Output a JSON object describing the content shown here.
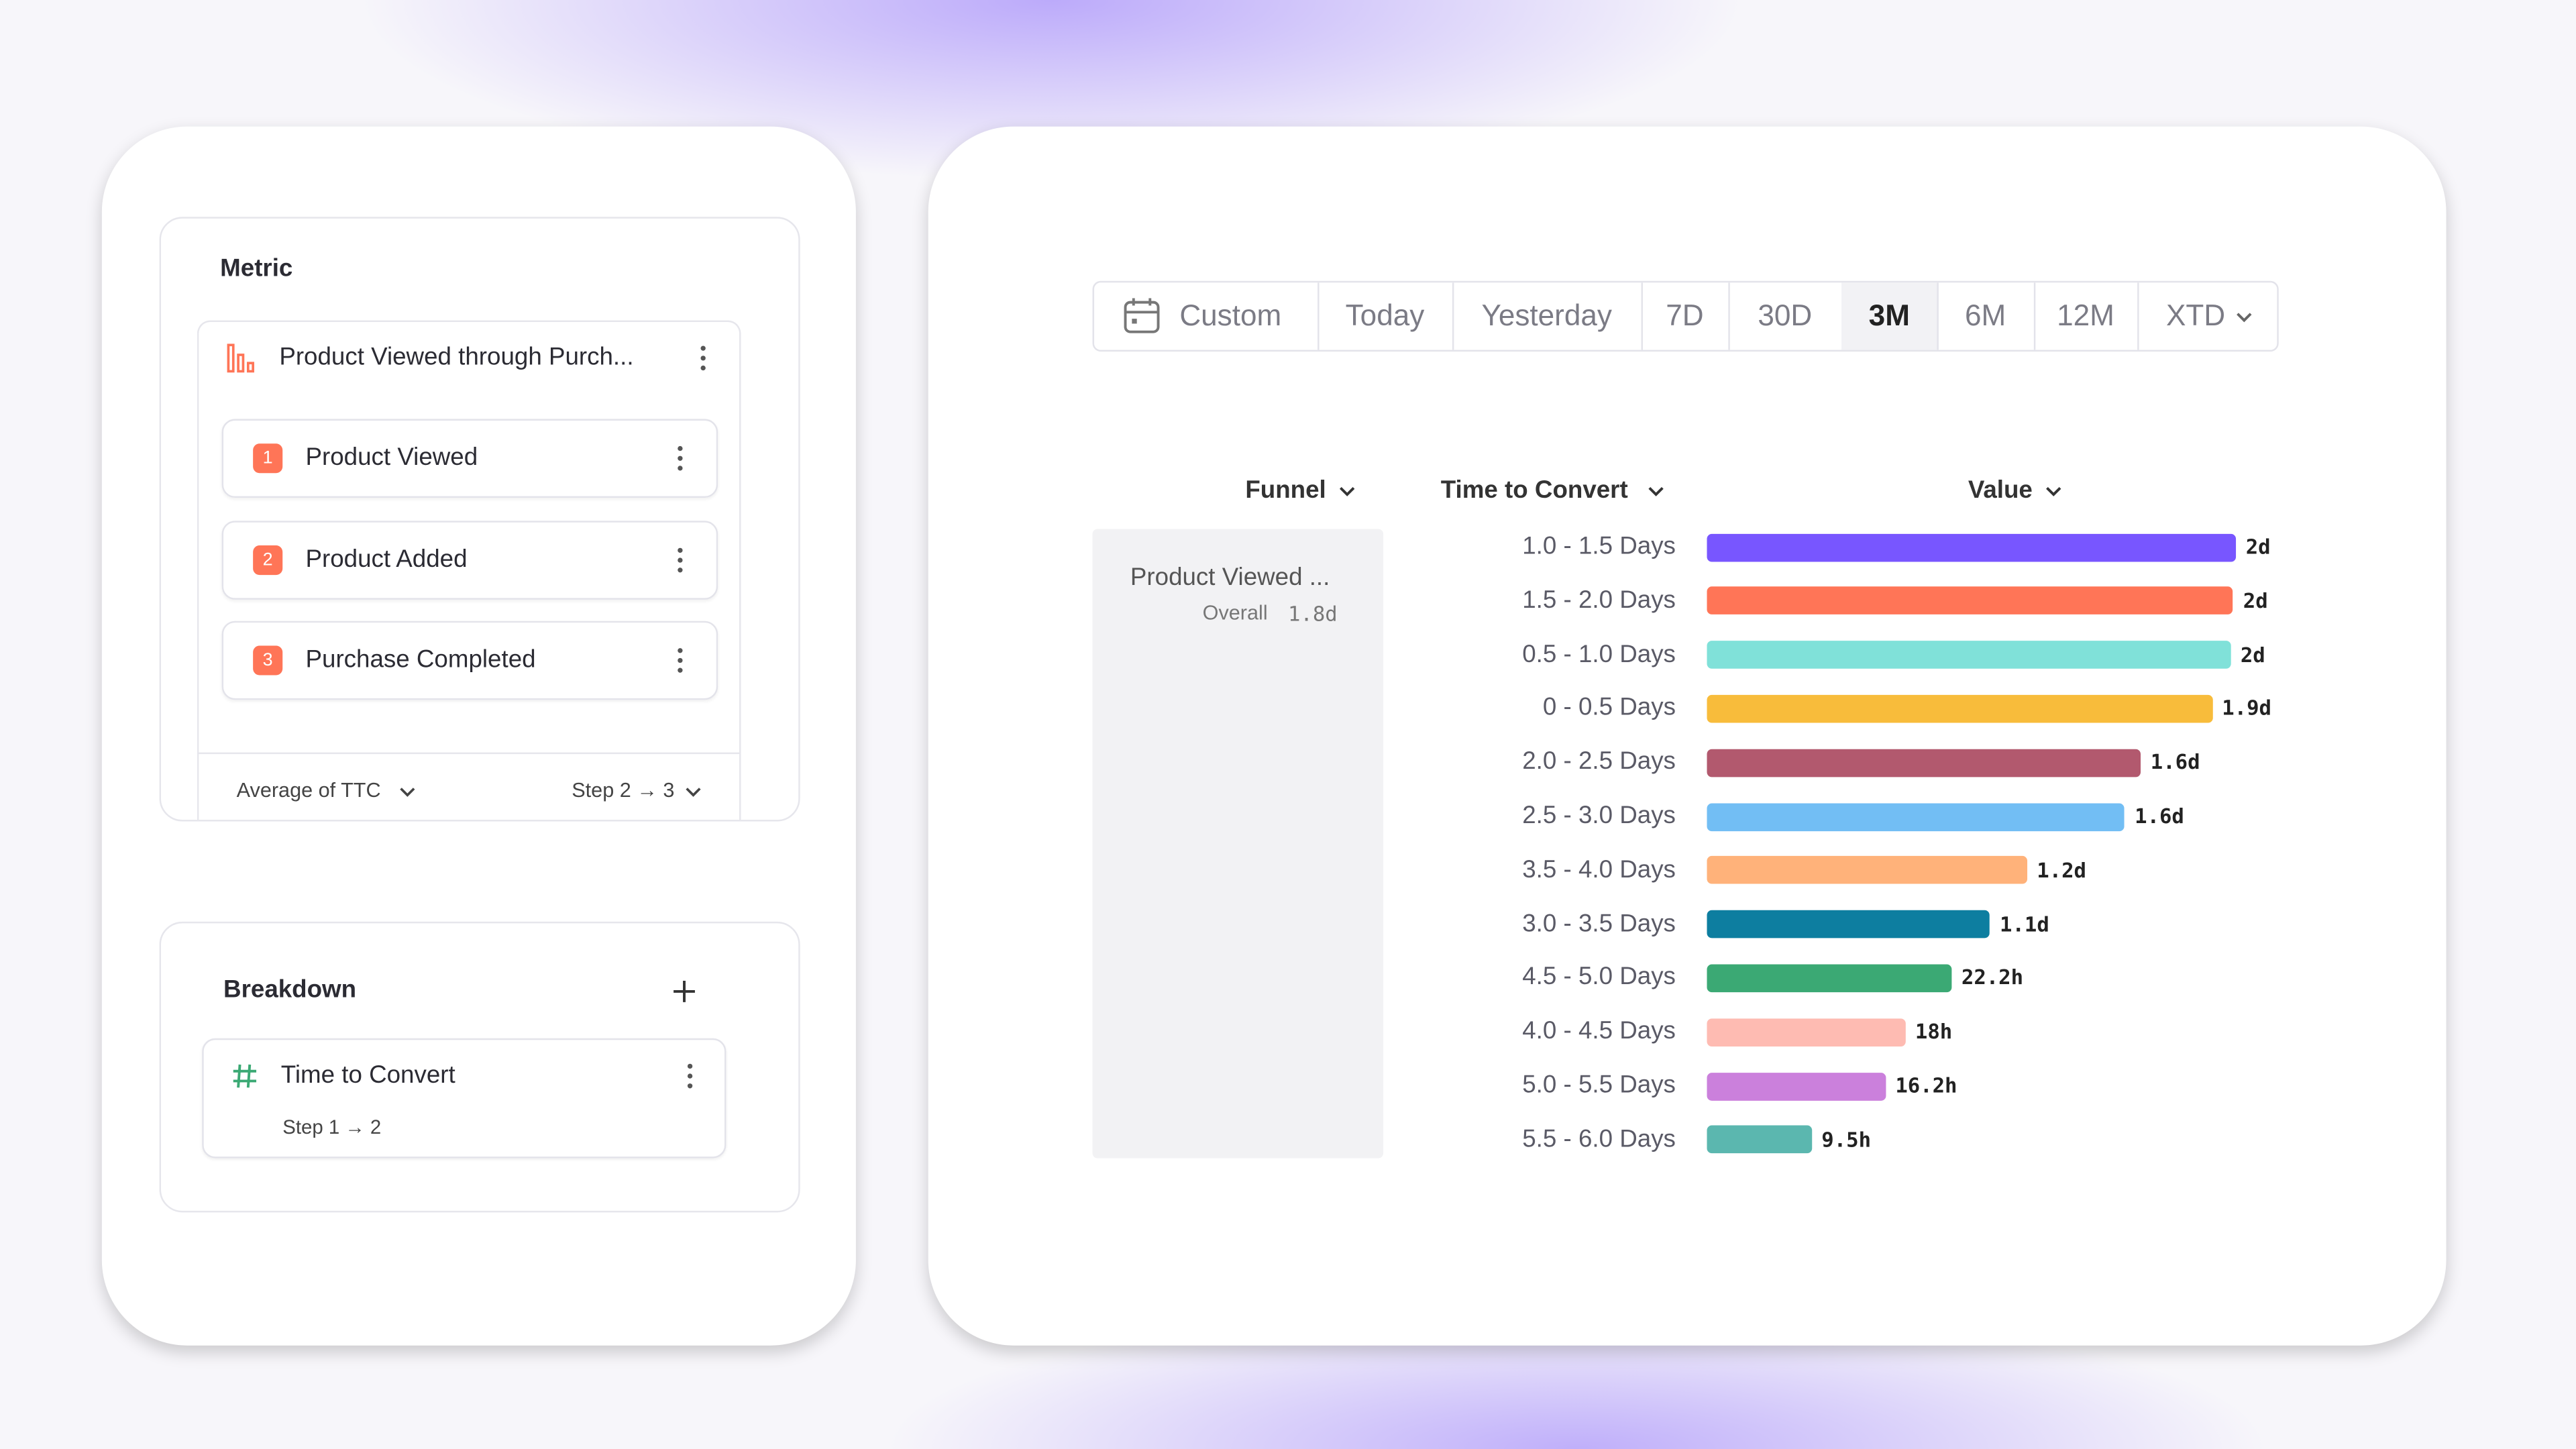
{
  "metric_panel": {
    "title": "Metric",
    "metric_name": "Product Viewed through Purch...",
    "steps": [
      {
        "number": "1",
        "label": "Product Viewed"
      },
      {
        "number": "2",
        "label": "Product Added"
      },
      {
        "number": "3",
        "label": "Purchase Completed"
      }
    ],
    "aggregation": "Average of TTC",
    "step_range": "Step 2 → 3"
  },
  "breakdown_panel": {
    "title": "Breakdown",
    "property": "Time to Convert",
    "step_range": "Step 1 → 2"
  },
  "date_range": {
    "options": [
      "Custom",
      "Today",
      "Yesterday",
      "7D",
      "30D",
      "3M",
      "6M",
      "12M",
      "XTD"
    ],
    "selected_index": 5
  },
  "chart_data": {
    "type": "bar",
    "orientation": "horizontal",
    "column_headers": [
      "Funnel",
      "Time to Convert",
      "Value"
    ],
    "funnel_name": "Product Viewed ...",
    "overall_label": "Overall",
    "overall_value": "1.8d",
    "categories": [
      "1.0 - 1.5 Days",
      "1.5 - 2.0 Days",
      "0.5 - 1.0 Days",
      "0 - 0.5 Days",
      "2.0 - 2.5 Days",
      "2.5 - 3.0 Days",
      "3.5 - 4.0 Days",
      "3.0 - 3.5 Days",
      "4.5 - 5.0 Days",
      "4.0 - 4.5 Days",
      "5.0 - 5.5 Days",
      "5.5 - 6.0 Days"
    ],
    "values": [
      2.0,
      1.99,
      1.98,
      1.91,
      1.64,
      1.58,
      1.21,
      1.07,
      0.925,
      0.75,
      0.675,
      0.396
    ],
    "value_labels": [
      "2d",
      "2d",
      "2d",
      "1.9d",
      "1.6d",
      "1.6d",
      "1.2d",
      "1.1d",
      "22.2h",
      "18h",
      "16.2h",
      "9.5h"
    ],
    "colors": [
      "#7856ff",
      "#ff7557",
      "#80e1d9",
      "#f8bc3b",
      "#b2596e",
      "#72bef4",
      "#ffb27a",
      "#0d7ea0",
      "#3ba974",
      "#febbb2",
      "#cb80dc",
      "#5bb7af"
    ]
  }
}
